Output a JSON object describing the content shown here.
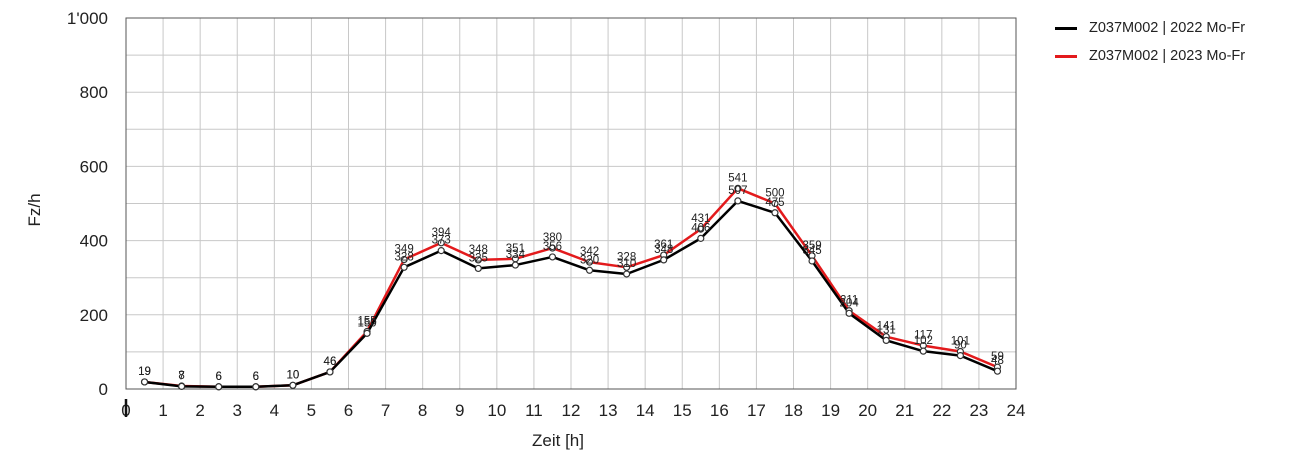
{
  "chart_data": {
    "type": "line",
    "xlabel": "Zeit [h]",
    "ylabel": "Fz/h",
    "xlim": [
      0,
      24
    ],
    "ylim": [
      0,
      1000
    ],
    "xticks": [
      "0",
      "1",
      "2",
      "3",
      "4",
      "5",
      "6",
      "7",
      "8",
      "9",
      "10",
      "11",
      "12",
      "13",
      "14",
      "15",
      "16",
      "17",
      "18",
      "19",
      "20",
      "21",
      "22",
      "23",
      "24"
    ],
    "yticks": [
      "0",
      "200",
      "400",
      "600",
      "800",
      "1'000"
    ],
    "grid": true,
    "legend_position": "top-right",
    "x": [
      0.5,
      1.5,
      2.5,
      3.5,
      4.5,
      5.5,
      6.5,
      7.5,
      8.5,
      9.5,
      10.5,
      11.5,
      12.5,
      13.5,
      14.5,
      15.5,
      16.5,
      17.5,
      18.5,
      19.5,
      20.5,
      21.5,
      22.5,
      23.5
    ],
    "series": [
      {
        "name": "Z037M002 | 2022 Mo-Fr",
        "color": "#000000",
        "values": [
          19,
          7,
          6,
          6,
          10,
          46,
          150,
          328,
          373,
          325,
          334,
          356,
          320,
          310,
          348,
          406,
          507,
          475,
          345,
          204,
          131,
          102,
          90,
          48
        ]
      },
      {
        "name": "Z037M002 | 2023 Mo-Fr",
        "color": "#e31a1c",
        "values": [
          19,
          8,
          6,
          6,
          10,
          46,
          155,
          349,
          394,
          348,
          351,
          380,
          342,
          328,
          361,
          431,
          541,
          500,
          359,
          211,
          141,
          117,
          101,
          59
        ]
      }
    ]
  }
}
